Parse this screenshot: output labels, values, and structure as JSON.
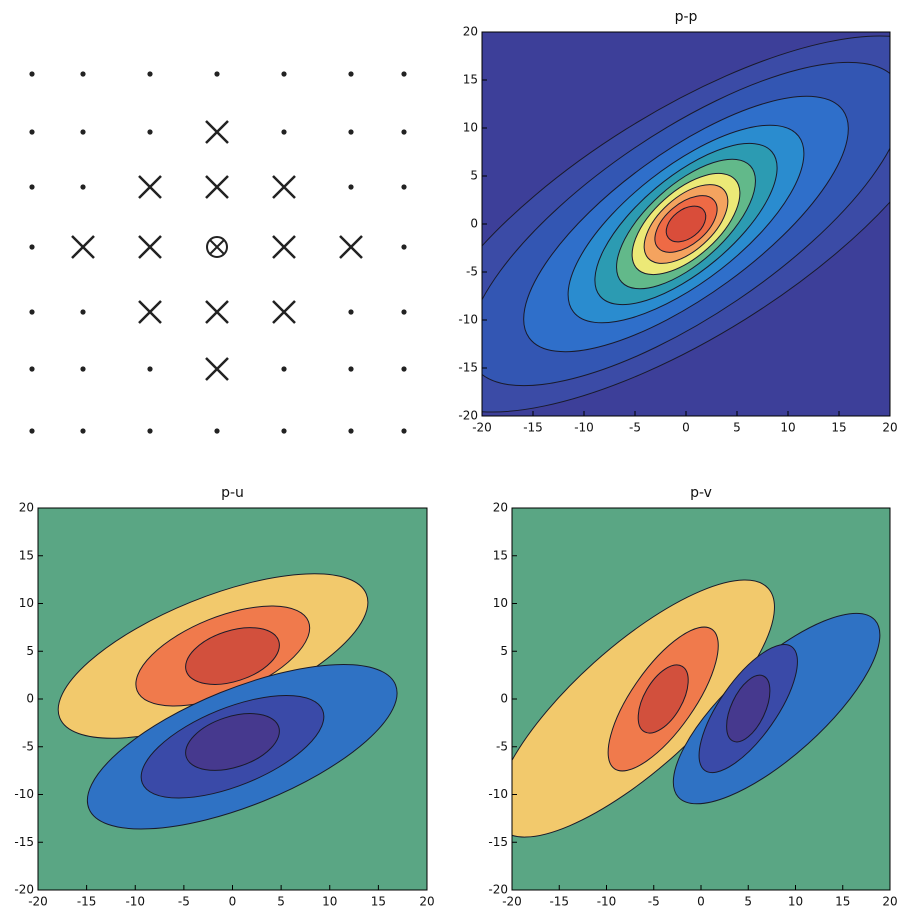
{
  "chart_data": [
    {
      "type": "contour",
      "title": "p-p",
      "xlim": [
        -20,
        20
      ],
      "ylim": [
        -20,
        20
      ],
      "xticks": [
        -20,
        -15,
        -10,
        -5,
        0,
        5,
        10,
        15,
        20
      ],
      "yticks": [
        -20,
        -15,
        -10,
        -5,
        0,
        5,
        10,
        15,
        20
      ]
    },
    {
      "type": "contour",
      "title": "p-u",
      "xlim": [
        -20,
        20
      ],
      "ylim": [
        -20,
        20
      ],
      "xticks": [
        -20,
        -15,
        -10,
        -5,
        0,
        5,
        10,
        15,
        20
      ],
      "yticks": [
        -20,
        -15,
        -10,
        -5,
        0,
        5,
        10,
        15,
        20
      ]
    },
    {
      "type": "contour",
      "title": "p-v",
      "xlim": [
        -20,
        20
      ],
      "ylim": [
        -20,
        20
      ],
      "xticks": [
        -20,
        -15,
        -10,
        -5,
        0,
        5,
        10,
        15,
        20
      ],
      "yticks": [
        -20,
        -15,
        -10,
        -5,
        0,
        5,
        10,
        15,
        20
      ]
    }
  ]
}
